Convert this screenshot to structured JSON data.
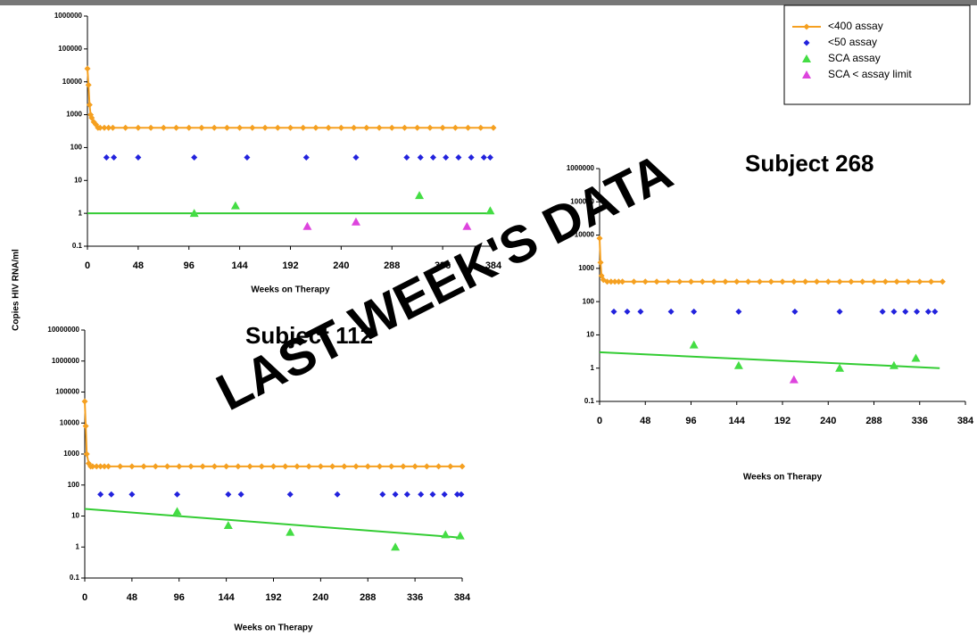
{
  "watermark": "LAST WEEK'S DATA",
  "chart_data": [
    {
      "type": "line",
      "ylabel": "Copies HIV RNA/ml",
      "xlabel": "Weeks on Therapy",
      "log_y": true,
      "xlim": [
        0,
        384
      ],
      "xticks": [
        0,
        48,
        96,
        144,
        192,
        240,
        288,
        336,
        384
      ],
      "ylim": [
        0.1,
        1000000
      ],
      "yticks": [
        0.1,
        1,
        10,
        100,
        1000,
        10000,
        100000,
        1000000
      ],
      "legend": "top-right",
      "series": [
        {
          "name": "<400 assay",
          "color": "#f5a020",
          "marker": "diamond",
          "line": true,
          "x": [
            0,
            1,
            2,
            3,
            4,
            6,
            8,
            10,
            12,
            16,
            20,
            24,
            36,
            48,
            60,
            72,
            84,
            96,
            108,
            120,
            132,
            144,
            156,
            168,
            180,
            192,
            204,
            216,
            228,
            240,
            252,
            264,
            276,
            288,
            300,
            312,
            324,
            336,
            348,
            360,
            372,
            384
          ],
          "values": [
            25000,
            8000,
            2000,
            1000,
            800,
            600,
            500,
            400,
            400,
            400,
            400,
            400,
            400,
            400,
            400,
            400,
            400,
            400,
            400,
            400,
            400,
            400,
            400,
            400,
            400,
            400,
            400,
            400,
            400,
            400,
            400,
            400,
            400,
            400,
            400,
            400,
            400,
            400,
            400,
            400,
            400,
            400
          ]
        },
        {
          "name": "<50 assay",
          "color": "#2222dd",
          "marker": "diamond",
          "x": [
            18,
            25,
            48,
            101,
            151,
            207,
            254,
            302,
            315,
            327,
            339,
            351,
            363,
            375,
            381
          ],
          "values": [
            50,
            50,
            50,
            50,
            50,
            50,
            50,
            50,
            50,
            50,
            50,
            50,
            50,
            50,
            50
          ]
        },
        {
          "name": "SCA assay",
          "color": "#44dd44",
          "marker": "triangle",
          "x": [
            101,
            140,
            314,
            381
          ],
          "values": [
            1,
            1.7,
            3.5,
            1.2
          ]
        },
        {
          "name": "SCA < assay limit",
          "color": "#dd44dd",
          "marker": "triangle",
          "x": [
            208,
            254,
            359
          ],
          "values": [
            0.4,
            0.55,
            0.4
          ]
        }
      ],
      "trend": {
        "color": "#33cc33",
        "x": [
          0,
          384
        ],
        "values": [
          1,
          1
        ]
      }
    },
    {
      "type": "line",
      "title": "Subject 112",
      "xlabel": "Weeks on Therapy",
      "log_y": true,
      "xlim": [
        0,
        384
      ],
      "xticks": [
        0,
        48,
        96,
        144,
        192,
        240,
        288,
        336,
        384
      ],
      "ylim": [
        0.1,
        10000000
      ],
      "yticks": [
        0.1,
        1,
        10,
        100,
        1000,
        10000,
        100000,
        1000000,
        10000000
      ],
      "series": [
        {
          "color": "#f5a020",
          "marker": "diamond",
          "line": true,
          "x": [
            0,
            1,
            2,
            4,
            6,
            8,
            12,
            16,
            20,
            24,
            36,
            48,
            60,
            72,
            84,
            96,
            108,
            120,
            132,
            144,
            156,
            168,
            180,
            192,
            204,
            216,
            228,
            240,
            252,
            264,
            276,
            288,
            300,
            312,
            324,
            336,
            348,
            360,
            372,
            384
          ],
          "values": [
            50000,
            8000,
            1000,
            500,
            400,
            400,
            400,
            400,
            400,
            400,
            400,
            400,
            400,
            400,
            400,
            400,
            400,
            400,
            400,
            400,
            400,
            400,
            400,
            400,
            400,
            400,
            400,
            400,
            400,
            400,
            400,
            400,
            400,
            400,
            400,
            400,
            400,
            400,
            400,
            400
          ]
        },
        {
          "color": "#2222dd",
          "marker": "diamond",
          "x": [
            16,
            27,
            48,
            94,
            146,
            159,
            209,
            257,
            303,
            316,
            328,
            342,
            354,
            366,
            379,
            383
          ],
          "values": [
            50,
            50,
            50,
            50,
            50,
            50,
            50,
            50,
            50,
            50,
            50,
            50,
            50,
            50,
            50,
            50
          ]
        },
        {
          "color": "#44dd44",
          "marker": "triangle",
          "x": [
            94,
            146,
            209,
            316,
            367,
            382
          ],
          "values": [
            14,
            5,
            3,
            1,
            2.5,
            2.3
          ]
        }
      ],
      "trend": {
        "color": "#33cc33",
        "x": [
          0,
          383
        ],
        "values": [
          17,
          2
        ]
      }
    },
    {
      "type": "line",
      "title": "Subject 268",
      "xlabel": "Weeks on Therapy",
      "log_y": true,
      "xlim": [
        0,
        384
      ],
      "xticks": [
        0,
        48,
        96,
        144,
        192,
        240,
        288,
        336,
        384
      ],
      "ylim": [
        0.1,
        1000000
      ],
      "yticks": [
        0.1,
        1,
        10,
        100,
        1000,
        10000,
        100000,
        1000000
      ],
      "series": [
        {
          "color": "#f5a020",
          "marker": "diamond",
          "line": true,
          "x": [
            0,
            1,
            2,
            4,
            8,
            12,
            16,
            20,
            24,
            36,
            48,
            60,
            72,
            84,
            96,
            108,
            120,
            132,
            144,
            156,
            168,
            180,
            192,
            204,
            216,
            228,
            240,
            252,
            264,
            276,
            288,
            300,
            312,
            324,
            336,
            348,
            360
          ],
          "values": [
            8000,
            1500,
            600,
            450,
            400,
            400,
            400,
            400,
            400,
            400,
            400,
            400,
            400,
            400,
            400,
            400,
            400,
            400,
            400,
            400,
            400,
            400,
            400,
            400,
            400,
            400,
            400,
            400,
            400,
            400,
            400,
            400,
            400,
            400,
            400,
            400,
            400
          ]
        },
        {
          "color": "#2222dd",
          "marker": "diamond",
          "x": [
            15,
            29,
            43,
            75,
            99,
            146,
            205,
            252,
            297,
            309,
            321,
            333,
            345,
            352
          ],
          "values": [
            50,
            50,
            50,
            50,
            50,
            50,
            50,
            50,
            50,
            50,
            50,
            50,
            50,
            50
          ]
        },
        {
          "color": "#44dd44",
          "marker": "triangle",
          "x": [
            99,
            146,
            252,
            309,
            332
          ],
          "values": [
            5,
            1.2,
            1,
            1.2,
            2
          ]
        },
        {
          "color": "#dd44dd",
          "marker": "triangle",
          "x": [
            204
          ],
          "values": [
            0.45
          ]
        }
      ],
      "trend": {
        "color": "#33cc33",
        "x": [
          0,
          357
        ],
        "values": [
          3,
          1
        ]
      }
    }
  ]
}
